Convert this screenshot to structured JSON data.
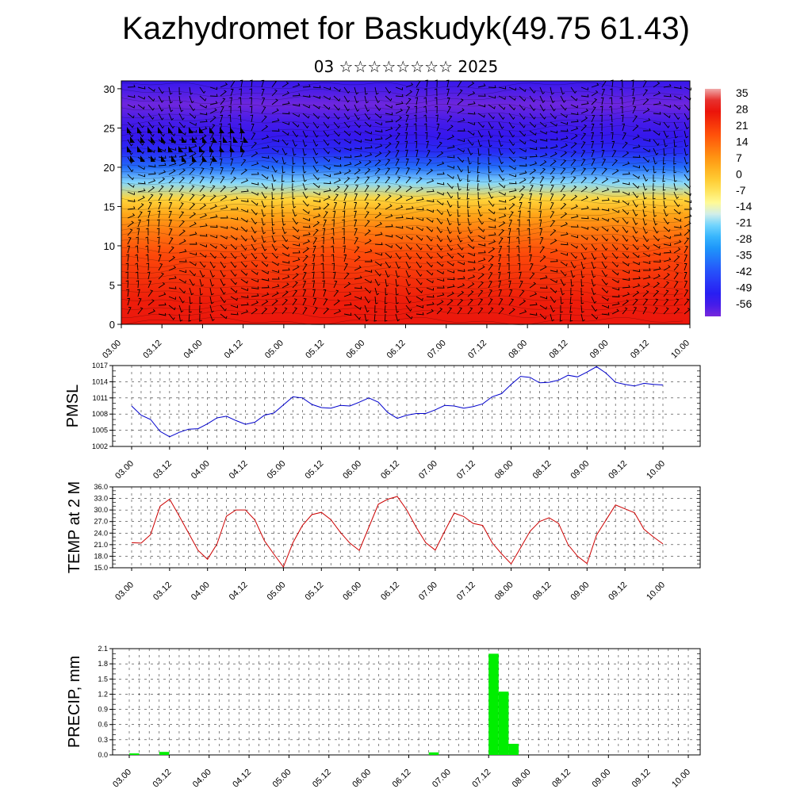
{
  "title": "Kazhydromet for Baskudyk(49.75 61.43)",
  "subtitle": "03 ☆☆☆☆☆☆☆☆ 2025",
  "time_ticks": [
    "03.00",
    "03.12",
    "04.00",
    "04.12",
    "05.00",
    "05.12",
    "06.00",
    "06.12",
    "07.00",
    "07.12",
    "08.00",
    "08.12",
    "09.00",
    "09.12",
    "10.00"
  ],
  "chart_data": [
    {
      "type": "heatmap",
      "name": "cross-section",
      "xlabel": "",
      "ylabel": "",
      "yticks": [
        0,
        5,
        10,
        15,
        20,
        25,
        30
      ],
      "ylim": [
        0,
        31
      ],
      "colorbar": {
        "labels": [
          "35",
          "28",
          "21",
          "14",
          "7",
          "0",
          "-7",
          "-14",
          "-21",
          "-28",
          "-35",
          "-42",
          "-49",
          "-56"
        ],
        "range": [
          -63,
          42
        ]
      },
      "temperature_profile": {
        "heights": [
          0,
          3,
          6,
          9,
          12,
          14,
          16,
          18,
          20,
          22,
          24,
          26,
          28,
          31
        ],
        "values": [
          32,
          30,
          26,
          22,
          14,
          7,
          -2,
          -20,
          -38,
          -50,
          -56,
          -58,
          -62,
          -56
        ]
      },
      "note_glyphs": "wind barbs"
    },
    {
      "type": "line",
      "ylabel": "PMSL",
      "ylim": [
        1002,
        1017
      ],
      "yticks": [
        1002,
        1005,
        1008,
        1011,
        1014,
        1017
      ],
      "color": "#0000cc",
      "values": [
        1009.5,
        1007.8,
        1007,
        1004.8,
        1003.8,
        1004.6,
        1005.2,
        1005.3,
        1006.2,
        1007.3,
        1007.6,
        1006.8,
        1006.1,
        1006.5,
        1007.8,
        1008.2,
        1009.7,
        1011.2,
        1011,
        1009.8,
        1009.2,
        1009.1,
        1009.6,
        1009.5,
        1010.2,
        1011,
        1010.2,
        1008.3,
        1007.2,
        1007.8,
        1008.1,
        1008.1,
        1008.8,
        1009.6,
        1009.5,
        1009.1,
        1009.4,
        1009.9,
        1011.2,
        1011.8,
        1013.5,
        1015,
        1014.8,
        1013.8,
        1013.9,
        1014.3,
        1015.2,
        1014.9,
        1015.8,
        1016.8,
        1015.6,
        1013.9,
        1013.5,
        1013.2,
        1013.7,
        1013.5,
        1013.4
      ]
    },
    {
      "type": "line",
      "ylabel": "TEMP at 2 M",
      "ylim": [
        15,
        36
      ],
      "yticks": [
        "15.0",
        "18.0",
        "21.0",
        "24.0",
        "27.0",
        "30.0",
        "33.0",
        "36.0"
      ],
      "color": "#cc0000",
      "values": [
        21.5,
        21.4,
        23.6,
        31,
        32.8,
        28.5,
        24,
        19.5,
        17.2,
        21.2,
        28.4,
        30,
        30,
        27.4,
        22,
        18.5,
        15.2,
        21.5,
        26,
        28.8,
        29.4,
        27.5,
        24.2,
        21.4,
        19.5,
        25.5,
        31.5,
        32.8,
        33.5,
        30,
        25.5,
        21.5,
        19.6,
        24.5,
        29.2,
        28.3,
        26.5,
        26,
        21.5,
        18.6,
        16,
        20.2,
        24.5,
        27,
        28,
        26.5,
        21,
        18,
        16.1,
        23.5,
        27.4,
        31.3,
        30.3,
        29.3,
        25,
        23,
        21.2
      ]
    },
    {
      "type": "bar",
      "ylabel": "PRECIP, mm",
      "ylim": [
        0,
        2.1
      ],
      "yticks": [
        "0.0",
        "0.3",
        "0.6",
        "0.9",
        "1.2",
        "1.5",
        "1.8",
        "2.1"
      ],
      "color": "#00ee00",
      "bars": [
        {
          "t": 0,
          "value": 0.03
        },
        {
          "t": 3,
          "value": 0.06
        },
        {
          "t": 30,
          "value": 0.05
        },
        {
          "t": 36,
          "value": 2.0
        },
        {
          "t": 37,
          "value": 1.25
        },
        {
          "t": 38,
          "value": 0.22
        }
      ]
    }
  ]
}
